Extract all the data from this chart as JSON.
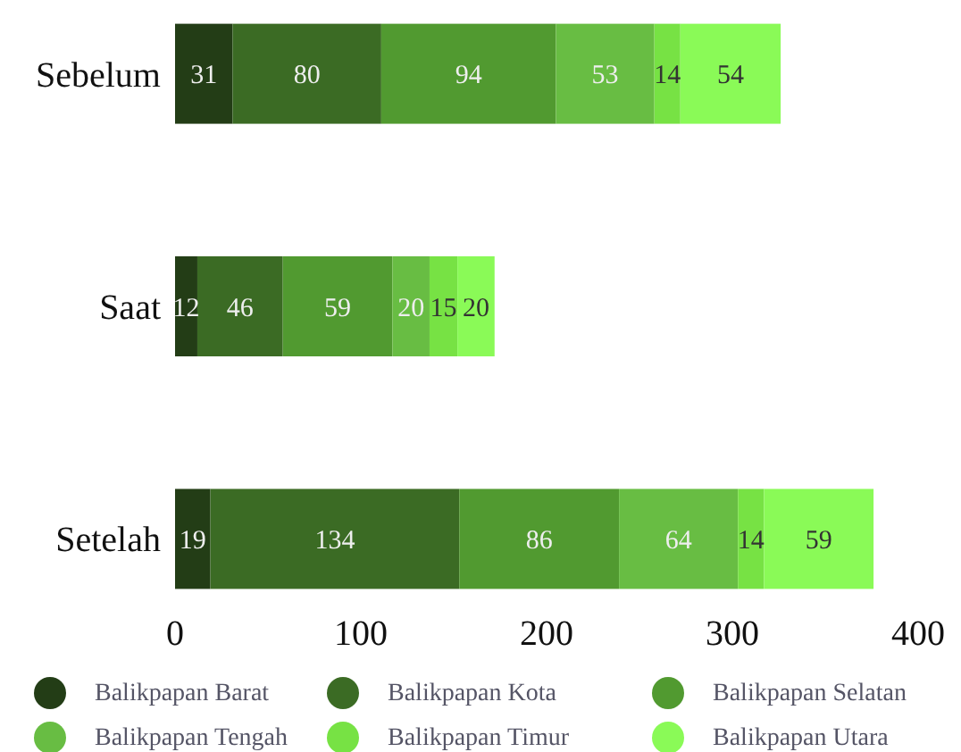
{
  "chart_data": {
    "type": "bar",
    "orientation": "horizontal",
    "stacked": true,
    "data_labels": true,
    "legend": "bottom",
    "grid": false,
    "categories": [
      "Sebelum",
      "Saat",
      "Setelah"
    ],
    "xlim": [
      0,
      400
    ],
    "xticks": [
      0,
      100,
      200,
      300,
      400
    ],
    "series": [
      {
        "name": "Balikpapan Barat",
        "color": "#233d16",
        "values": [
          31,
          12,
          19
        ]
      },
      {
        "name": "Balikpapan Kota",
        "color": "#3b6b24",
        "values": [
          80,
          46,
          134
        ]
      },
      {
        "name": "Balikpapan Selatan",
        "color": "#519a30",
        "values": [
          94,
          59,
          86
        ]
      },
      {
        "name": "Balikpapan Tengah",
        "color": "#68bd43",
        "values": [
          53,
          20,
          64
        ]
      },
      {
        "name": "Balikpapan Timur",
        "color": "#77e244",
        "values": [
          14,
          15,
          14
        ]
      },
      {
        "name": "Balikpapan Utara",
        "color": "#8afa57",
        "values": [
          54,
          20,
          59
        ]
      }
    ]
  }
}
